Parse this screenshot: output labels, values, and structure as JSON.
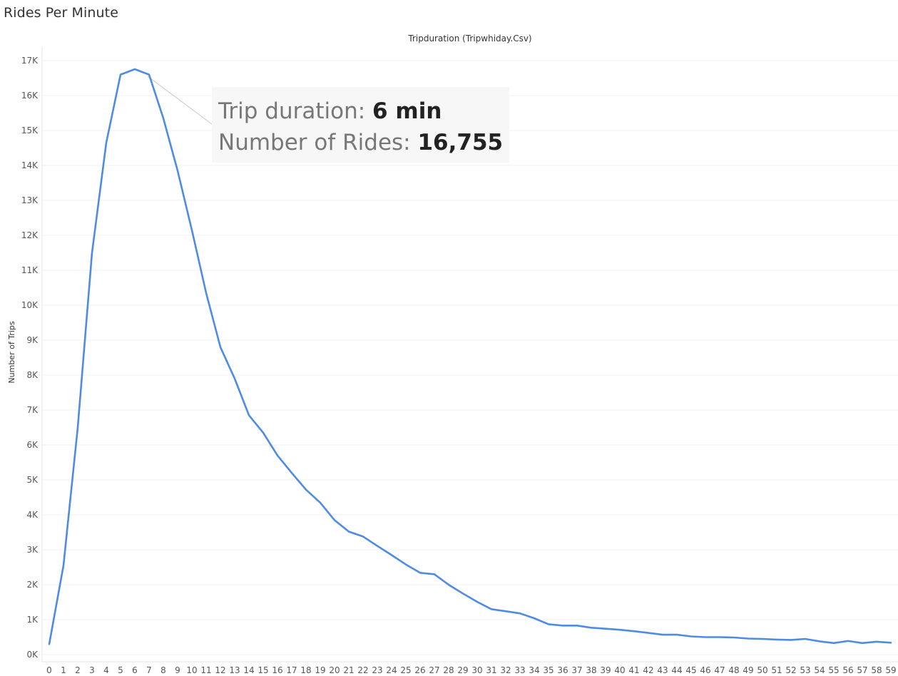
{
  "sheet_title": "Rides Per Minute",
  "chart_data": {
    "type": "line",
    "title": "Tripduration (Tripwhiday.Csv)",
    "xlabel": "",
    "ylabel": "Number of Trips",
    "x": [
      0,
      1,
      2,
      3,
      4,
      5,
      6,
      7,
      8,
      9,
      10,
      11,
      12,
      13,
      14,
      15,
      16,
      17,
      18,
      19,
      20,
      21,
      22,
      23,
      24,
      25,
      26,
      27,
      28,
      29,
      30,
      31,
      32,
      33,
      34,
      35,
      36,
      37,
      38,
      39,
      40,
      41,
      42,
      43,
      44,
      45,
      46,
      47,
      48,
      49,
      50,
      51,
      52,
      53,
      54,
      55,
      56,
      57,
      58,
      59
    ],
    "x_tick_labels": [
      "0",
      "1",
      "2",
      "3",
      "4",
      "5",
      "6",
      "7",
      "8",
      "9",
      "10",
      "11",
      "12",
      "13",
      "14",
      "15",
      "16",
      "17",
      "18",
      "19",
      "20",
      "21",
      "22",
      "23",
      "24",
      "25",
      "26",
      "27",
      "28",
      "29",
      "30",
      "31",
      "32",
      "33",
      "34",
      "35",
      "36",
      "37",
      "38",
      "39",
      "40",
      "41",
      "42",
      "43",
      "44",
      "45",
      "46",
      "47",
      "48",
      "49",
      "50",
      "51",
      "52",
      "53",
      "54",
      "55",
      "56",
      "57",
      "58",
      "59"
    ],
    "series": [
      {
        "values": [
          300,
          2550,
          6500,
          11500,
          14650,
          16600,
          16755,
          16600,
          15350,
          13850,
          12150,
          10350,
          8800,
          7900,
          6850,
          6350,
          5700,
          5200,
          4720,
          4350,
          3850,
          3520,
          3380,
          3110,
          2850,
          2580,
          2340,
          2300,
          2000,
          1750,
          1510,
          1300,
          1240,
          1180,
          1040,
          870,
          830,
          830,
          770,
          740,
          710,
          670,
          620,
          570,
          570,
          520,
          500,
          500,
          490,
          460,
          450,
          430,
          420,
          450,
          380,
          330,
          390,
          330,
          370,
          340
        ],
        "color": "#4e8ce4"
      }
    ],
    "y_ticks": [
      0,
      1000,
      2000,
      3000,
      4000,
      5000,
      6000,
      7000,
      8000,
      9000,
      10000,
      11000,
      12000,
      13000,
      14000,
      15000,
      16000,
      17000
    ],
    "y_tick_labels": [
      "0K",
      "1K",
      "2K",
      "3K",
      "4K",
      "5K",
      "6K",
      "7K",
      "8K",
      "9K",
      "10K",
      "11K",
      "12K",
      "13K",
      "14K",
      "15K",
      "16K",
      "17K"
    ],
    "ylim": [
      0,
      17600
    ],
    "xlim": [
      0,
      59
    ],
    "grid": true,
    "tooltip": {
      "x_value": 6,
      "label1": "Trip duration: ",
      "value1": "6 min",
      "label2": "Number of Rides: ",
      "value2": "16,755"
    }
  }
}
